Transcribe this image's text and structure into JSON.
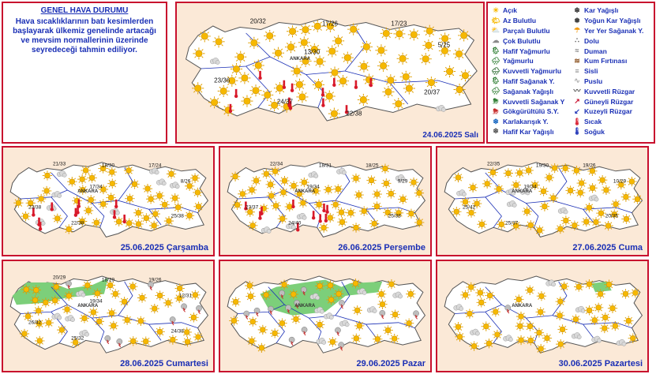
{
  "summary": {
    "title": "GENEL HAVA DURUMU",
    "text": "Hava sıcaklıklarının batı kesimlerden başlayarak ülkemiz genelinde artacağı ve mevsim normallerinin üzerinde seyredeceği tahmin ediliyor."
  },
  "city": "ANKARA",
  "legend": [
    {
      "label": "Açık",
      "icon": "sun-icon"
    },
    {
      "label": "Kar Yağışlı",
      "icon": "snow-icon"
    },
    {
      "label": "Az Bulutlu",
      "icon": "sun-small-cloud-icon"
    },
    {
      "label": "Yoğun Kar Yağışlı",
      "icon": "heavy-snow-icon"
    },
    {
      "label": "Parçalı Bulutlu",
      "icon": "partly-cloudy-icon"
    },
    {
      "label": "Yer Yer Sağanak Y.",
      "icon": "scattered-showers-icon"
    },
    {
      "label": "Çok Bulutlu",
      "icon": "cloudy-icon"
    },
    {
      "label": "Dolu",
      "icon": "hail-icon"
    },
    {
      "label": "Hafif Yağmurlu",
      "icon": "light-rain-icon"
    },
    {
      "label": "Duman",
      "icon": "smoke-icon"
    },
    {
      "label": "Yağmurlu",
      "icon": "rain-icon"
    },
    {
      "label": "Kum Fırtınası",
      "icon": "sandstorm-icon"
    },
    {
      "label": "Kuvvetli Yağmurlu",
      "icon": "heavy-rain-icon"
    },
    {
      "label": "Sisli",
      "icon": "fog-icon"
    },
    {
      "label": "Hafif Sağanak Y.",
      "icon": "light-shower-icon"
    },
    {
      "label": "Puslu",
      "icon": "haze-icon"
    },
    {
      "label": "Sağanak Yağışlı",
      "icon": "shower-icon"
    },
    {
      "label": "Kuvvetli Rüzgar",
      "icon": "strong-wind-icon"
    },
    {
      "label": "Kuvvetli Sağanak Y",
      "icon": "heavy-shower-icon"
    },
    {
      "label": "Güneyli Rüzgar",
      "icon": "south-wind-arrow-icon"
    },
    {
      "label": "Gökgürültülü S.Y.",
      "icon": "thunderstorm-icon"
    },
    {
      "label": "Kuzeyli Rüzgar",
      "icon": "north-wind-arrow-icon"
    },
    {
      "label": "Karlakarışık Y.",
      "icon": "sleet-icon"
    },
    {
      "label": "Sıcak",
      "icon": "hot-thermometer-icon"
    },
    {
      "label": "Hafif Kar Yağışlı",
      "icon": "light-snow-icon"
    },
    {
      "label": "Soğuk",
      "icon": "cold-thermometer-icon"
    }
  ],
  "colors": {
    "sun": "#f6b800",
    "hot": "#d8192a",
    "storm_region": "#7ccf7a",
    "border": "#c8102e",
    "text": "#1a2fb5"
  },
  "maps": [
    {
      "id": "main",
      "date": "24.06.2025 Salı",
      "temps": [
        "20/32",
        "17/26",
        "17/23",
        "13/30",
        "5/25",
        "23/36",
        "24/37",
        "20/37",
        "22/38"
      ],
      "hot_cells": 14,
      "storm_cells": 0,
      "cloud_cells": 2
    },
    {
      "id": "d1",
      "date": "25.06.2025 Çarşamba",
      "temps": [
        "21/33",
        "18/30",
        "17/24",
        "17/34",
        "8/26",
        "23/38",
        "22/38",
        "25/38"
      ],
      "hot_cells": 10,
      "storm_cells": 0,
      "cloud_cells": 8
    },
    {
      "id": "d2",
      "date": "26.06.2025 Perşembe",
      "temps": [
        "22/34",
        "18/31",
        "18/25",
        "19/34",
        "9/29",
        "23/37",
        "24/40",
        "25/38"
      ],
      "hot_cells": 10,
      "storm_cells": 0,
      "cloud_cells": 6
    },
    {
      "id": "d3",
      "date": "27.06.2025 Cuma",
      "temps": [
        "22/35",
        "19/30",
        "19/26",
        "19/34",
        "10/29",
        "25/42",
        "25/37",
        "20/35"
      ],
      "hot_cells": 0,
      "storm_cells": 0,
      "cloud_cells": 6
    },
    {
      "id": "d4",
      "date": "28.06.2025 Cumartesi",
      "temps": [
        "20/29",
        "18/29",
        "19/26",
        "19/34",
        "12/31",
        "26/42",
        "25/32",
        "24/38"
      ],
      "hot_cells": 0,
      "storm_cells": 7,
      "cloud_cells": 4
    },
    {
      "id": "d5",
      "date": "29.06.2025 Pazar",
      "temps": [],
      "hot_cells": 0,
      "storm_cells": 14,
      "cloud_cells": 8
    },
    {
      "id": "d6",
      "date": "30.06.2025 Pazartesi",
      "temps": [],
      "hot_cells": 0,
      "storm_cells": 1,
      "cloud_cells": 8
    }
  ]
}
